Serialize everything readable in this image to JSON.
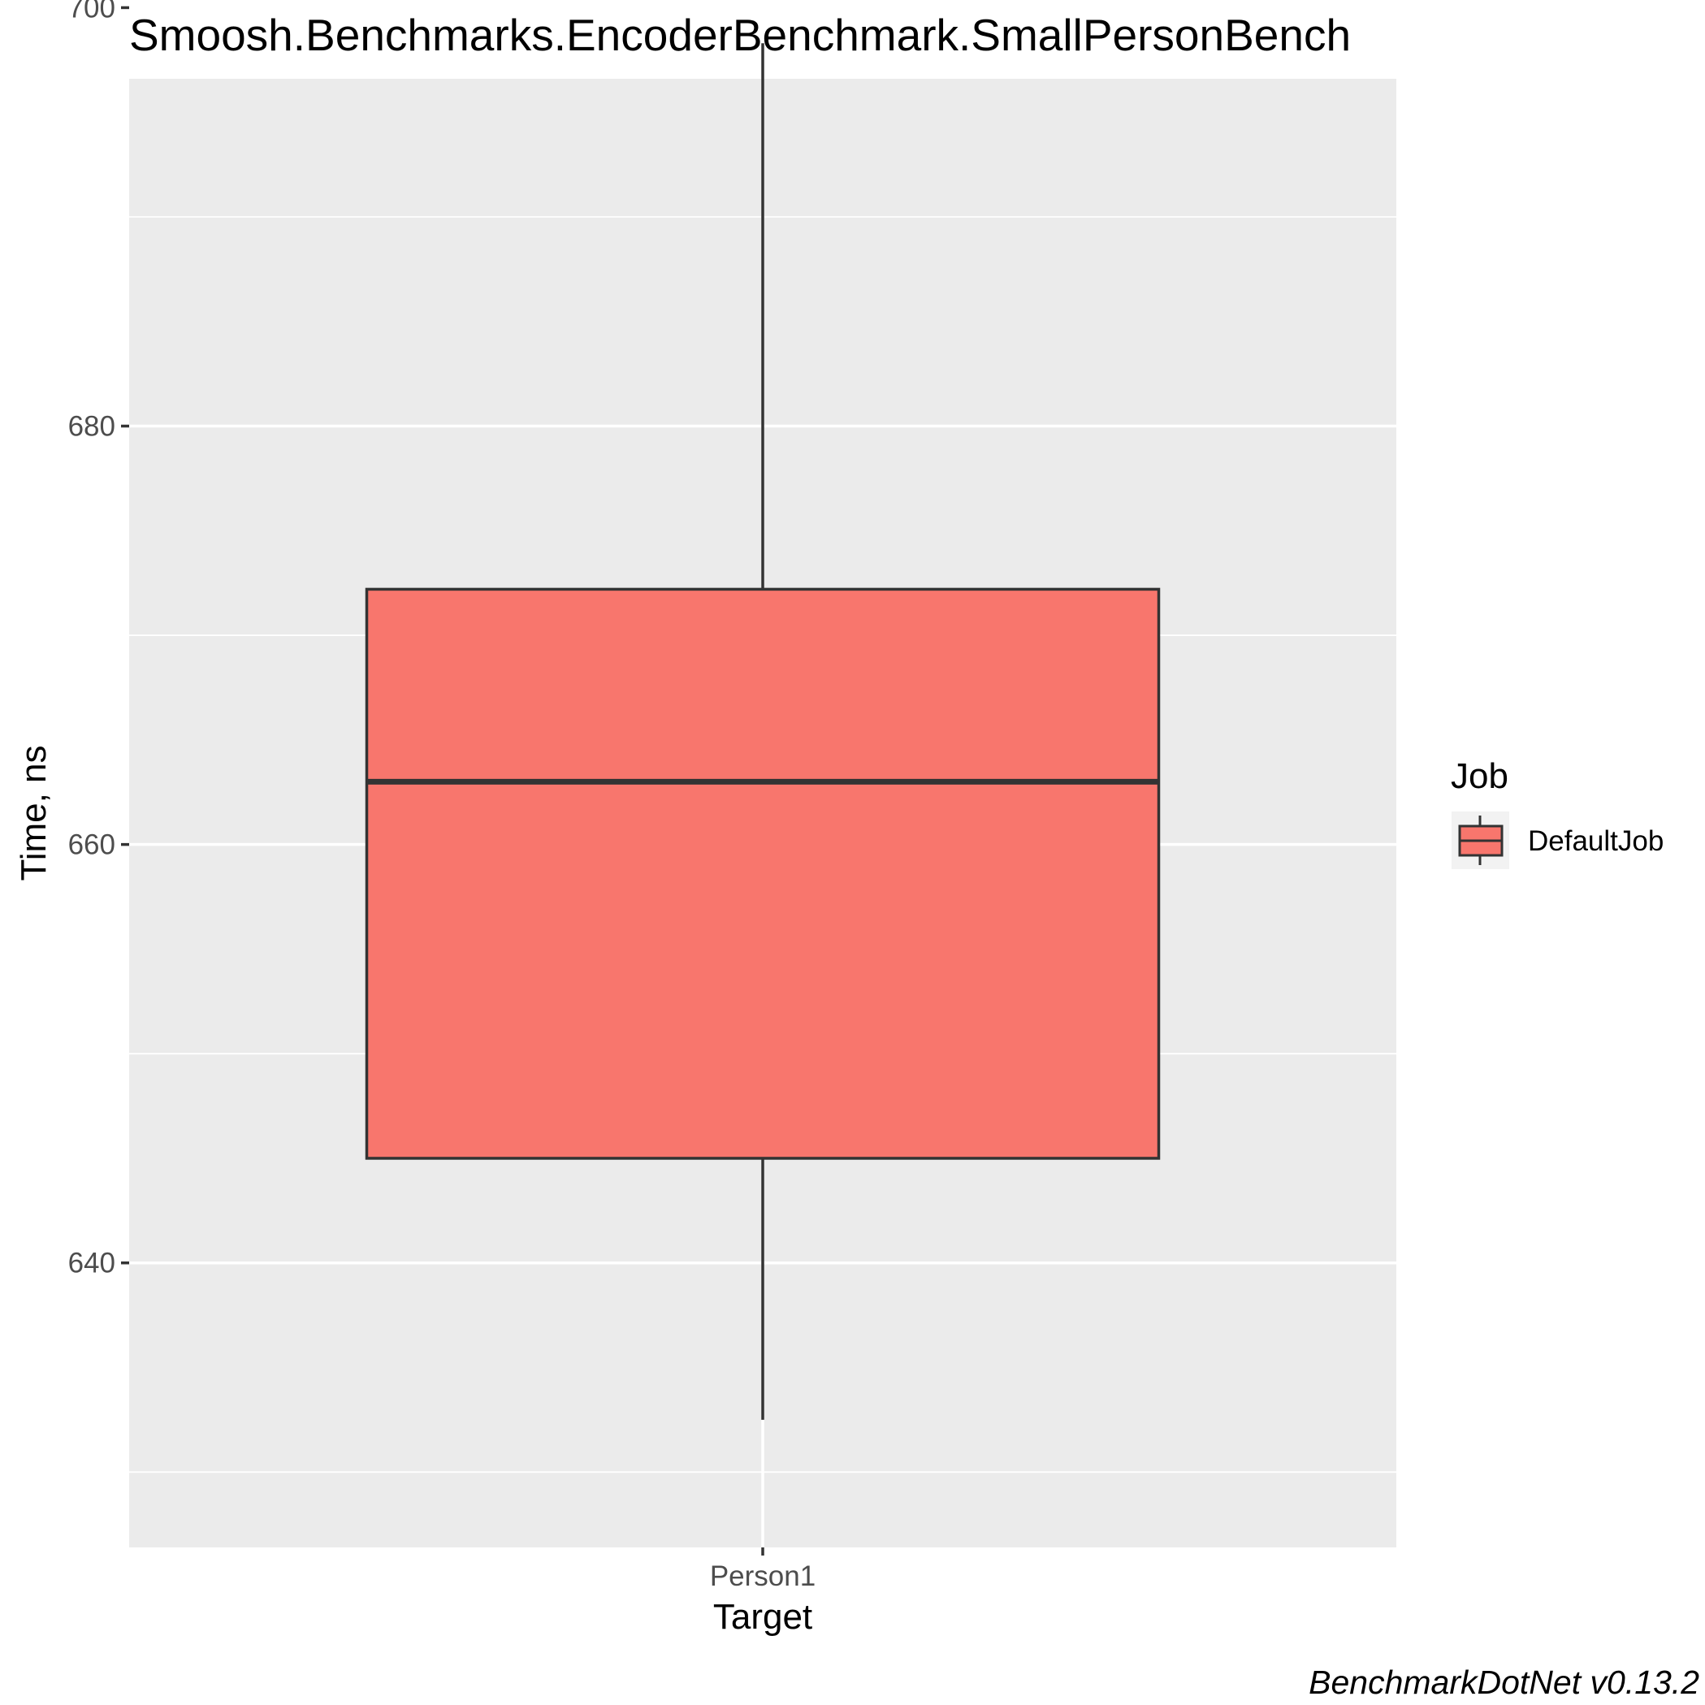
{
  "chart_data": {
    "type": "box",
    "title": "Smoosh.Benchmarks.EncoderBenchmark.SmallPersonBench",
    "xlabel": "Target",
    "ylabel": "Time, ns",
    "categories": [
      "Person1"
    ],
    "ylim": [
      626.4,
      696.6
    ],
    "yticks": [
      640,
      660,
      680,
      700
    ],
    "ytick_labels": [
      "640",
      "660",
      "680",
      "700"
    ],
    "grid": true,
    "series": [
      {
        "name": "DefaultJob",
        "color": "#f8766d",
        "boxes": [
          {
            "category": "Person1",
            "min": 632.5,
            "q1": 645.0,
            "median": 663.0,
            "q3": 672.2,
            "max": 698.3
          }
        ]
      }
    ],
    "legend": {
      "title": "Job",
      "position": "right",
      "entries": [
        "DefaultJob"
      ]
    },
    "caption": "BenchmarkDotNet v0.13.2"
  }
}
